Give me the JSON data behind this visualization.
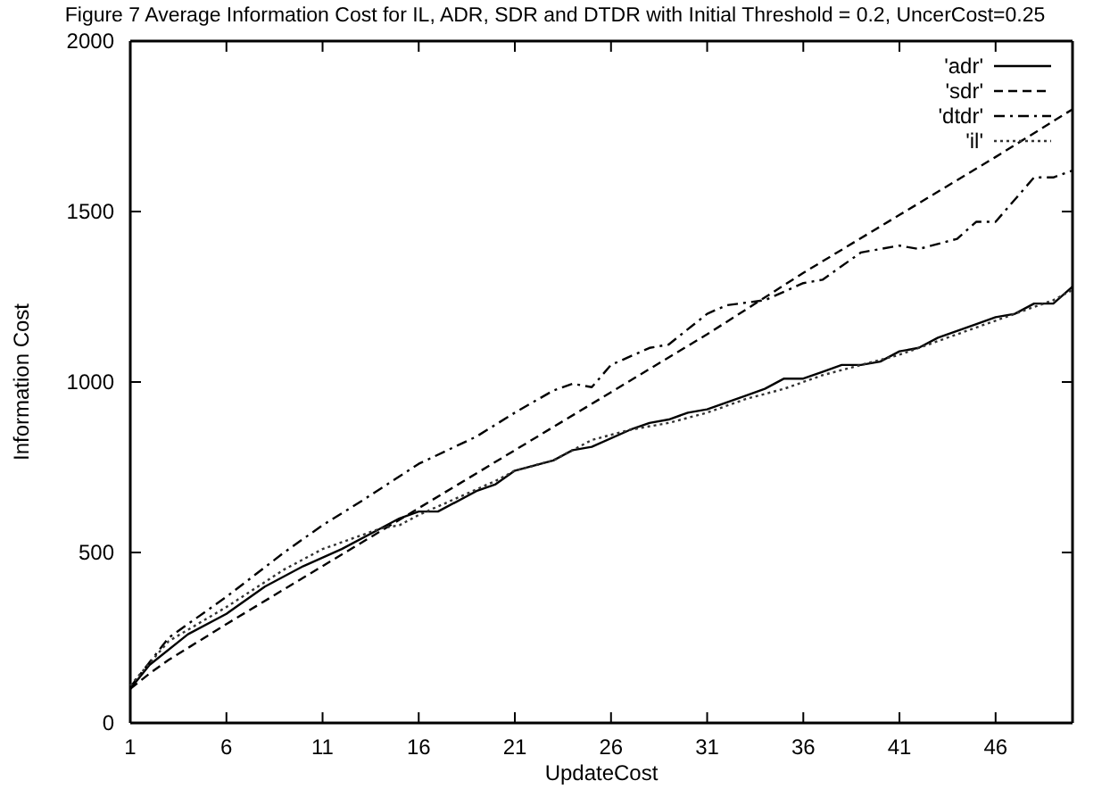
{
  "chart_data": {
    "type": "line",
    "title": "Figure 7 Average Information Cost for IL, ADR, SDR and DTDR with Initial Threshold = 0.2, UncerCost=0.25",
    "xlabel": "UpdateCost",
    "ylabel": "Information Cost",
    "xlim": [
      1,
      50
    ],
    "ylim": [
      0,
      2000
    ],
    "xticks": [
      1,
      6,
      11,
      16,
      21,
      26,
      31,
      36,
      41,
      46
    ],
    "yticks": [
      0,
      500,
      1000,
      1500,
      2000
    ],
    "grid": false,
    "legend": "top right",
    "marker": "none",
    "series": [
      {
        "name": "'adr'",
        "color": "#000000",
        "line_style": "solid",
        "x": [
          1,
          2,
          4,
          6,
          8,
          10,
          12,
          14,
          15,
          16,
          17,
          19,
          20,
          21,
          23,
          24,
          25,
          27,
          28,
          29,
          30,
          31,
          33,
          34,
          35,
          36,
          37,
          38,
          39,
          40,
          41,
          42,
          43,
          45,
          46,
          47,
          48,
          49,
          50
        ],
        "values": [
          100,
          170,
          260,
          320,
          400,
          460,
          510,
          570,
          600,
          620,
          620,
          680,
          700,
          740,
          770,
          800,
          810,
          860,
          880,
          890,
          910,
          920,
          960,
          980,
          1010,
          1010,
          1030,
          1050,
          1050,
          1060,
          1090,
          1100,
          1130,
          1170,
          1190,
          1200,
          1230,
          1230,
          1280
        ]
      },
      {
        "name": "'sdr'",
        "color": "#000000",
        "line_style": "dashed",
        "x": [
          1,
          2,
          3,
          4,
          6,
          11,
          16,
          21,
          26,
          31,
          36,
          41,
          46,
          50
        ],
        "values": [
          100,
          145,
          185,
          220,
          290,
          460,
          630,
          800,
          970,
          1140,
          1320,
          1490,
          1660,
          1800
        ]
      },
      {
        "name": "'dtdr'",
        "color": "#000000",
        "line_style": "dashdot",
        "x": [
          1,
          3,
          6,
          9,
          11,
          13,
          16,
          19,
          21,
          23,
          24,
          25,
          26,
          28,
          29,
          31,
          32,
          34,
          36,
          37,
          39,
          41,
          42,
          44,
          45,
          46,
          48,
          49,
          50
        ],
        "values": [
          105,
          250,
          370,
          500,
          580,
          650,
          760,
          840,
          910,
          975,
          995,
          985,
          1050,
          1100,
          1110,
          1200,
          1225,
          1240,
          1290,
          1300,
          1380,
          1400,
          1390,
          1420,
          1470,
          1470,
          1600,
          1600,
          1620
        ]
      },
      {
        "name": "'il'",
        "color": "#333333",
        "line_style": "dotted",
        "x": [
          1,
          3,
          6,
          9,
          11,
          14,
          15,
          16,
          18,
          20,
          21,
          23,
          25,
          27,
          29,
          31,
          33,
          35,
          37,
          39,
          41,
          43,
          45,
          47,
          49,
          50
        ],
        "values": [
          110,
          240,
          340,
          450,
          510,
          570,
          580,
          610,
          660,
          710,
          740,
          770,
          830,
          860,
          880,
          910,
          950,
          980,
          1020,
          1050,
          1080,
          1120,
          1160,
          1200,
          1240,
          1270
        ]
      }
    ]
  }
}
